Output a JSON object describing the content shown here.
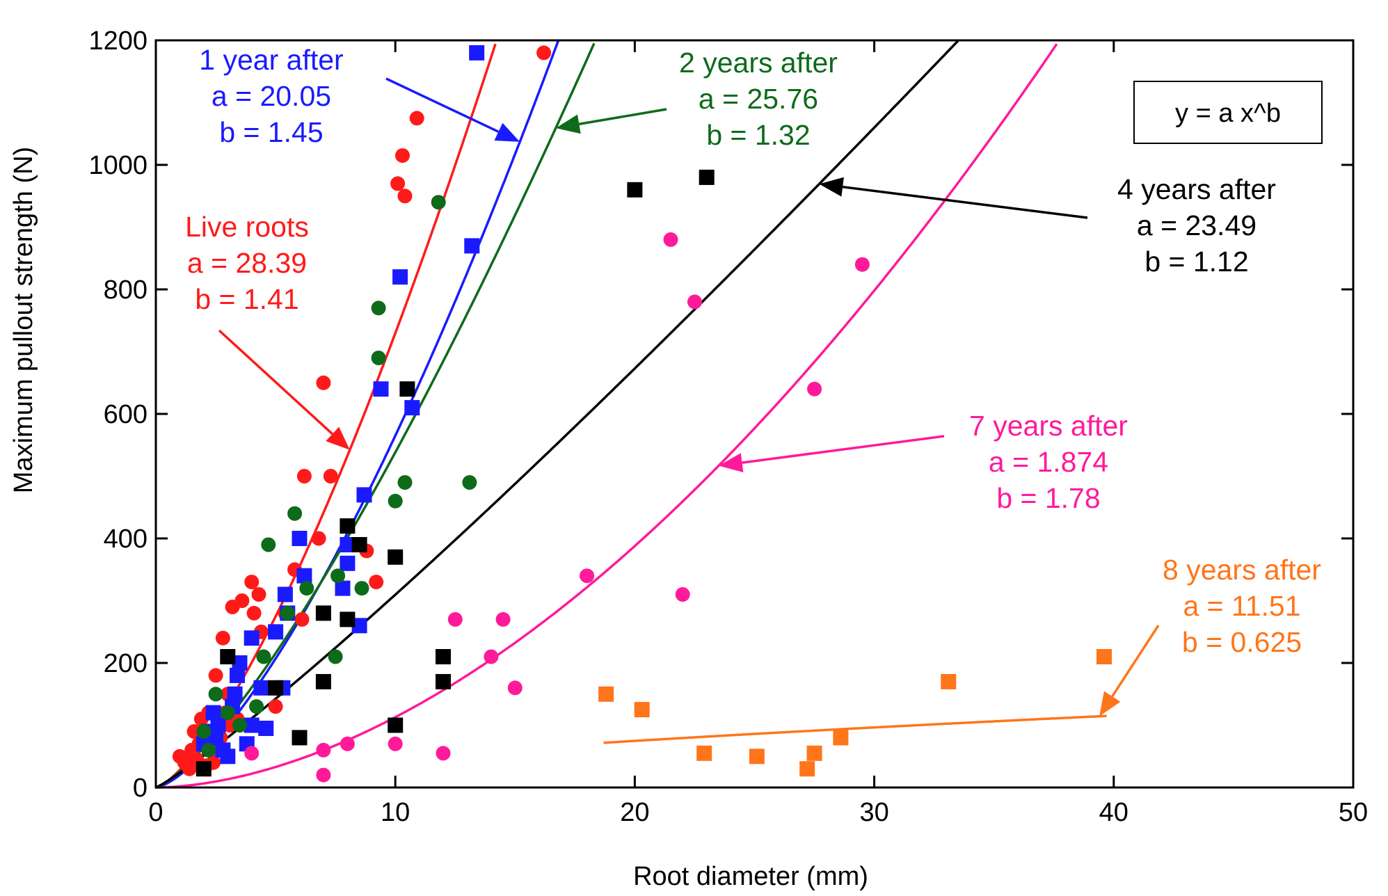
{
  "chart_data": {
    "type": "scatter",
    "xlabel": "Root diameter (mm)",
    "ylabel": "Maximum pullout strength (N)",
    "xlim": [
      0,
      50
    ],
    "ylim": [
      0,
      1200
    ],
    "x_ticks": [
      0,
      10,
      20,
      30,
      40,
      50
    ],
    "y_ticks": [
      0,
      200,
      400,
      600,
      800,
      1000,
      1200
    ],
    "grid": false,
    "equation": "y = a x^b",
    "series": [
      {
        "name": "Live roots",
        "color": "#ff1a1a",
        "marker": "circle",
        "label_lines": [
          "Live roots",
          "a = 28.39",
          "b = 1.41"
        ],
        "a": 28.39,
        "b": 1.41,
        "fit_x": [
          0,
          16.3
        ],
        "points": [
          [
            1,
            50
          ],
          [
            1.2,
            40
          ],
          [
            1.4,
            30
          ],
          [
            1.5,
            60
          ],
          [
            1.6,
            90
          ],
          [
            1.7,
            45
          ],
          [
            1.8,
            70
          ],
          [
            1.9,
            110
          ],
          [
            2,
            80
          ],
          [
            2.1,
            35
          ],
          [
            2.2,
            120
          ],
          [
            2.3,
            60
          ],
          [
            2.4,
            40
          ],
          [
            2.5,
            180
          ],
          [
            2.6,
            100
          ],
          [
            2.7,
            80
          ],
          [
            2.8,
            240
          ],
          [
            2.9,
            120
          ],
          [
            3,
            150
          ],
          [
            3.1,
            100
          ],
          [
            3.2,
            290
          ],
          [
            3.4,
            110
          ],
          [
            3.6,
            300
          ],
          [
            4,
            330
          ],
          [
            4.1,
            280
          ],
          [
            4.3,
            310
          ],
          [
            4.4,
            250
          ],
          [
            5,
            130
          ],
          [
            5.4,
            280
          ],
          [
            5.8,
            350
          ],
          [
            6,
            400
          ],
          [
            6.1,
            270
          ],
          [
            6.2,
            500
          ],
          [
            6.8,
            400
          ],
          [
            7,
            650
          ],
          [
            7.3,
            500
          ],
          [
            8.8,
            380
          ],
          [
            9.2,
            330
          ],
          [
            10.1,
            970
          ],
          [
            10.3,
            1015
          ],
          [
            10.4,
            950
          ],
          [
            10.9,
            1075
          ],
          [
            16.2,
            1180
          ]
        ]
      },
      {
        "name": "1 year after",
        "color": "#1a1aff",
        "marker": "square",
        "label_lines": [
          "1 year after",
          "a = 20.05",
          "b = 1.45"
        ],
        "a": 20.05,
        "b": 1.45,
        "fit_x": [
          0,
          16.8
        ],
        "points": [
          [
            2,
            70
          ],
          [
            2.2,
            90
          ],
          [
            2.4,
            120
          ],
          [
            2.5,
            80
          ],
          [
            2.6,
            100
          ],
          [
            2.8,
            60
          ],
          [
            3,
            50
          ],
          [
            3.2,
            130
          ],
          [
            3.3,
            150
          ],
          [
            3.4,
            180
          ],
          [
            3.5,
            200
          ],
          [
            3.8,
            70
          ],
          [
            4,
            240
          ],
          [
            4,
            100
          ],
          [
            4.4,
            160
          ],
          [
            4.6,
            95
          ],
          [
            5,
            250
          ],
          [
            5.3,
            160
          ],
          [
            5.4,
            310
          ],
          [
            5.5,
            280
          ],
          [
            6,
            400
          ],
          [
            6.2,
            340
          ],
          [
            7.8,
            320
          ],
          [
            8,
            390
          ],
          [
            8,
            360
          ],
          [
            8.5,
            260
          ],
          [
            8.7,
            470
          ],
          [
            9.4,
            640
          ],
          [
            10.2,
            820
          ],
          [
            10.7,
            610
          ],
          [
            13.2,
            870
          ],
          [
            13.4,
            1180
          ]
        ]
      },
      {
        "name": "2 years after",
        "color": "#0d6b1a",
        "marker": "circle",
        "label_lines": [
          "2 years after",
          "a = 25.76",
          "b = 1.32"
        ],
        "a": 25.76,
        "b": 1.32,
        "fit_x": [
          0,
          18.3
        ],
        "points": [
          [
            2,
            90
          ],
          [
            2.2,
            60
          ],
          [
            2.5,
            150
          ],
          [
            3,
            120
          ],
          [
            3.5,
            100
          ],
          [
            4.2,
            130
          ],
          [
            4.5,
            210
          ],
          [
            4.7,
            390
          ],
          [
            5.5,
            280
          ],
          [
            5.8,
            440
          ],
          [
            6.3,
            320
          ],
          [
            7.5,
            210
          ],
          [
            7.6,
            340
          ],
          [
            8.6,
            320
          ],
          [
            9.3,
            770
          ],
          [
            9.3,
            690
          ],
          [
            10,
            460
          ],
          [
            10.4,
            490
          ],
          [
            11.8,
            940
          ],
          [
            13.1,
            490
          ]
        ]
      },
      {
        "name": "4 years after",
        "color": "#000000",
        "marker": "square",
        "label_lines": [
          "4 years after",
          "a = 23.49",
          "b = 1.12"
        ],
        "a": 23.49,
        "b": 1.12,
        "fit_x": [
          0,
          34.3
        ],
        "points": [
          [
            2,
            30
          ],
          [
            3,
            210
          ],
          [
            5,
            160
          ],
          [
            6,
            80
          ],
          [
            7,
            170
          ],
          [
            7,
            280
          ],
          [
            8,
            270
          ],
          [
            8,
            420
          ],
          [
            8.5,
            390
          ],
          [
            10,
            370
          ],
          [
            10,
            100
          ],
          [
            10.5,
            640
          ],
          [
            12,
            210
          ],
          [
            12,
            170
          ],
          [
            20,
            960
          ],
          [
            23,
            980
          ]
        ]
      },
      {
        "name": "7 years after",
        "color": "#ff1a9a",
        "marker": "circle",
        "label_lines": [
          "7 years after",
          "a = 1.874",
          "b = 1.78"
        ],
        "a": 1.874,
        "b": 1.78,
        "fit_x": [
          0,
          38.0
        ],
        "points": [
          [
            4,
            55
          ],
          [
            7,
            60
          ],
          [
            7,
            20
          ],
          [
            8,
            70
          ],
          [
            10,
            70
          ],
          [
            12,
            55
          ],
          [
            12.5,
            270
          ],
          [
            14,
            210
          ],
          [
            14.5,
            270
          ],
          [
            15,
            160
          ],
          [
            18,
            340
          ],
          [
            21.5,
            880
          ],
          [
            22,
            310
          ],
          [
            22.5,
            780
          ],
          [
            27.5,
            640
          ],
          [
            29.5,
            840
          ]
        ]
      },
      {
        "name": "8 years after",
        "color": "#ff7519",
        "marker": "square",
        "label_lines": [
          "8 years after",
          "a = 11.51",
          "b = 0.625"
        ],
        "a": 11.51,
        "b": 0.625,
        "fit_x": [
          18.7,
          39.7
        ],
        "points": [
          [
            18.8,
            150
          ],
          [
            20.3,
            125
          ],
          [
            22.9,
            55
          ],
          [
            25.1,
            50
          ],
          [
            27.2,
            30
          ],
          [
            27.5,
            55
          ],
          [
            28.6,
            80
          ],
          [
            33.1,
            170
          ],
          [
            39.6,
            210
          ]
        ]
      }
    ]
  }
}
